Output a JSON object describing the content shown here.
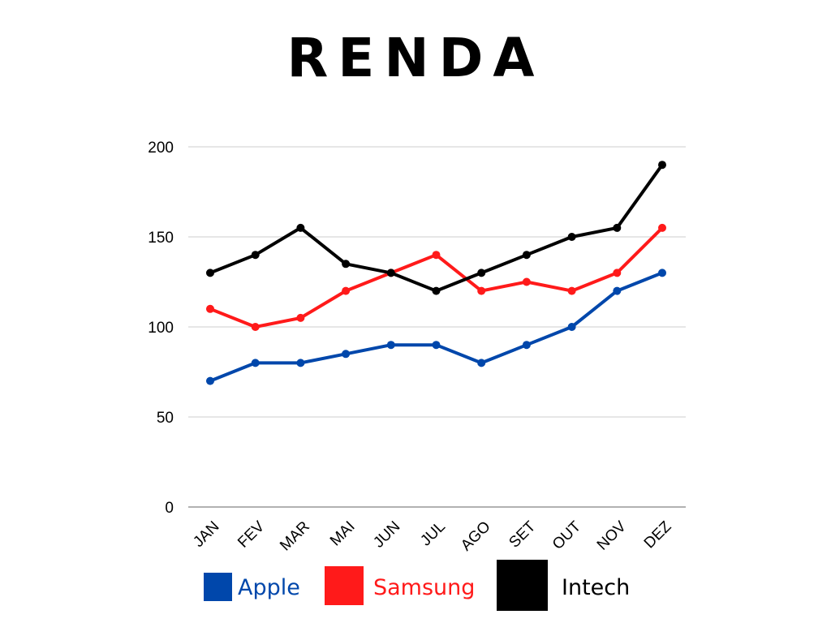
{
  "chart_data": {
    "type": "line",
    "title": "RENDA",
    "xlabel": "",
    "ylabel": "",
    "categories": [
      "JAN",
      "FEV",
      "MAR",
      "MAI",
      "JUN",
      "JUL",
      "AGO",
      "SET",
      "OUT",
      "NOV",
      "DEZ"
    ],
    "ylim": [
      0,
      200
    ],
    "yticks": [
      0,
      50,
      100,
      150,
      200
    ],
    "grid": "horizontal",
    "legend_position": "bottom",
    "series": [
      {
        "name": "Apple",
        "color": "#0047ab",
        "values": [
          70,
          80,
          80,
          85,
          90,
          90,
          80,
          90,
          100,
          120,
          130
        ]
      },
      {
        "name": "Samsung",
        "color": "#ff1a1a",
        "values": [
          110,
          100,
          105,
          120,
          130,
          140,
          120,
          125,
          120,
          130,
          155
        ]
      },
      {
        "name": "Intech",
        "color": "#000000",
        "values": [
          130,
          140,
          155,
          135,
          130,
          120,
          130,
          140,
          150,
          155,
          190
        ]
      }
    ]
  }
}
